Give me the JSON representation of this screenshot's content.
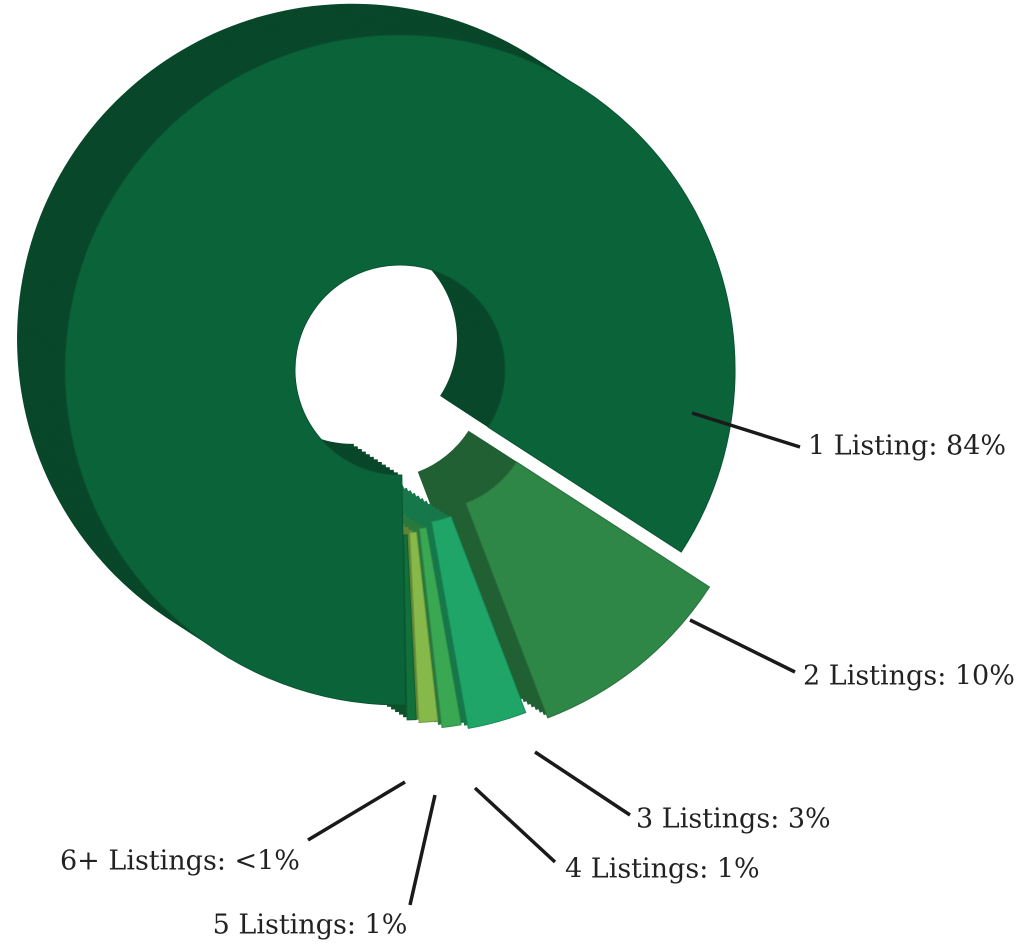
{
  "chart_data": {
    "type": "donut",
    "categories": [
      "1 Listing: 84%",
      "2 Listings: 10%",
      "3 Listings: 3%",
      "4 Listings: 1%",
      "5 Listings: 1%",
      "6+ Listings: <1%"
    ],
    "values": [
      84,
      10,
      3,
      1,
      1,
      0.5
    ],
    "colors": [
      "#0b6339",
      "#2e8647",
      "#1fa567",
      "#3aa853",
      "#86b84a",
      "#12703a"
    ]
  }
}
